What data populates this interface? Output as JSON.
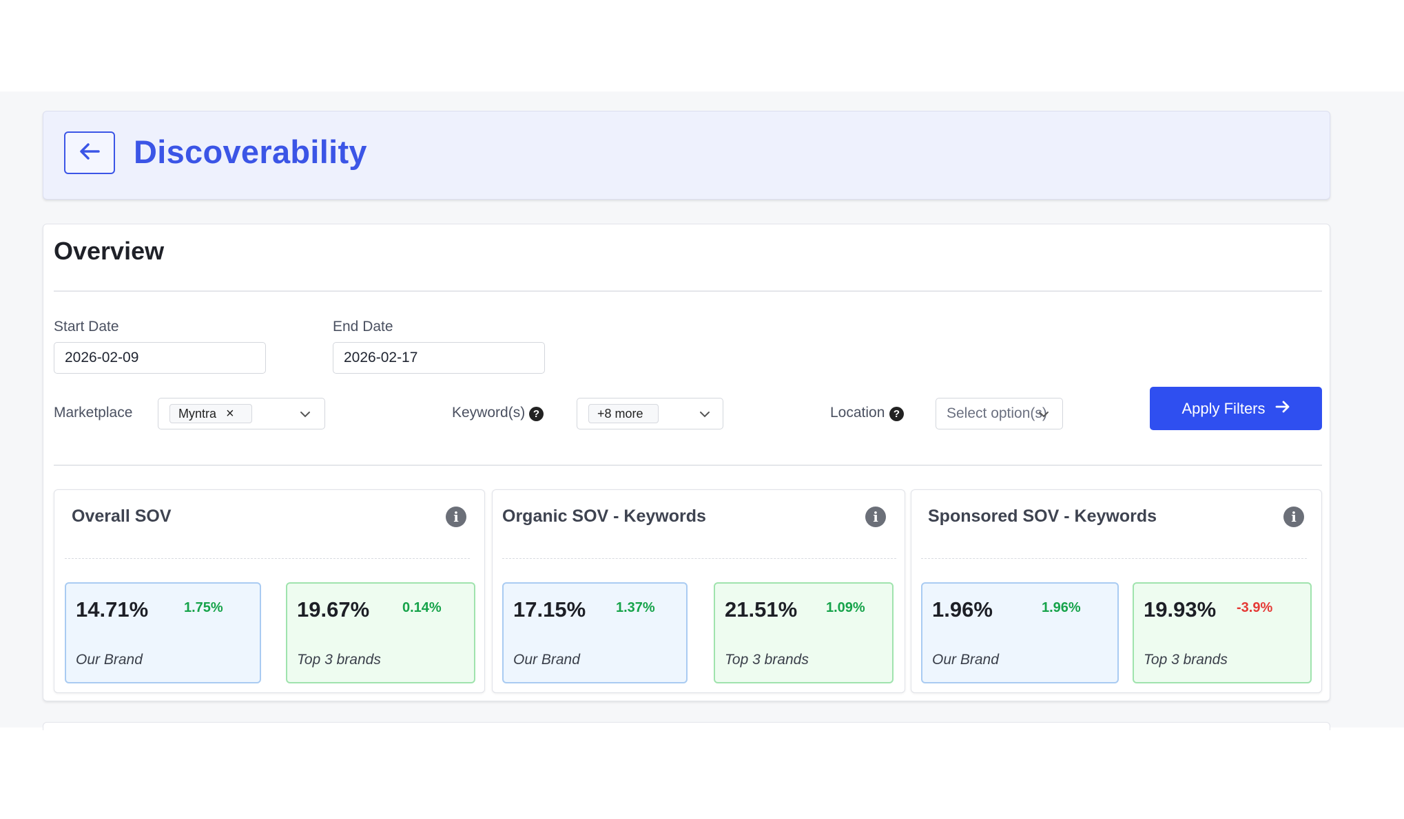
{
  "header": {
    "title": "Discoverability",
    "back_icon": "arrow-left-icon",
    "accent_color": "#3b55e6"
  },
  "overview": {
    "title": "Overview",
    "start_date": {
      "label": "Start Date",
      "value": "2026-02-09"
    },
    "end_date": {
      "label": "End Date",
      "value": "2026-02-17"
    },
    "marketplace": {
      "label": "Marketplace",
      "selected_chip": "Myntra",
      "remove_glyph": "×"
    },
    "keywords": {
      "label": "Keyword(s)",
      "help": "?",
      "selected_chip": "+8 more"
    },
    "location": {
      "label": "Location",
      "help": "?",
      "placeholder": "Select option(s)"
    },
    "apply_button": {
      "label": "Apply Filters",
      "color": "#2f4ff0"
    }
  },
  "panels": [
    {
      "title": "Overall SOV",
      "info": "i",
      "metrics": [
        {
          "value": "14.71%",
          "delta": "1.75%",
          "delta_positive": true,
          "label": "Our Brand"
        },
        {
          "value": "19.67%",
          "delta": "0.14%",
          "delta_positive": true,
          "label": "Top 3 brands"
        }
      ]
    },
    {
      "title": "Organic SOV - Keywords",
      "info": "i",
      "metrics": [
        {
          "value": "17.15%",
          "delta": "1.37%",
          "delta_positive": true,
          "label": "Our Brand"
        },
        {
          "value": "21.51%",
          "delta": "1.09%",
          "delta_positive": true,
          "label": "Top 3 brands"
        }
      ]
    },
    {
      "title": "Sponsored SOV - Keywords",
      "info": "i",
      "metrics": [
        {
          "value": "1.96%",
          "delta": "1.96%",
          "delta_positive": true,
          "label": "Our Brand"
        },
        {
          "value": "19.93%",
          "delta": "-3.9%",
          "delta_positive": false,
          "label": "Top 3 brands"
        }
      ]
    }
  ],
  "colors": {
    "positive": "#16a34a",
    "negative": "#e53935",
    "brand_card_bg": "#eef6fe",
    "top_card_bg": "#eefcf0"
  }
}
